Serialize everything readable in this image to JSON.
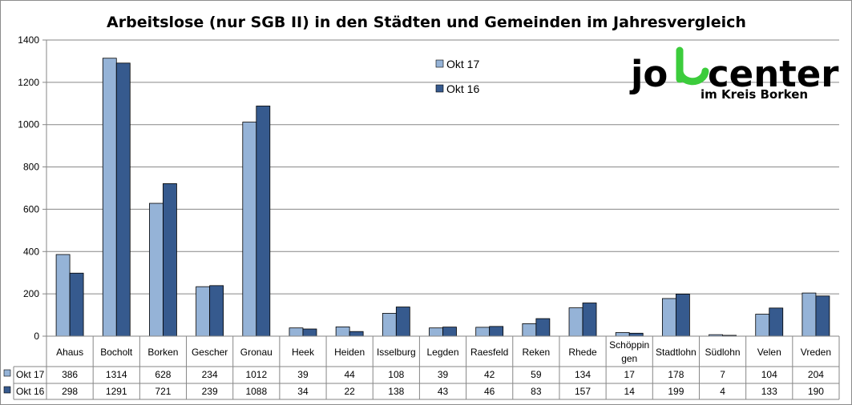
{
  "chart_data": {
    "type": "bar",
    "title": "Arbeitslose (nur SGB II) in den Städten und Gemeinden im Jahresvergleich",
    "categories": [
      "Ahaus",
      "Bocholt",
      "Borken",
      "Gescher",
      "Gronau",
      "Heek",
      "Heiden",
      "Isselburg",
      "Legden",
      "Raesfeld",
      "Reken",
      "Rhede",
      "Schöppingen",
      "Stadtlohn",
      "Südlohn",
      "Velen",
      "Vreden"
    ],
    "category_lines": [
      [
        "Ahaus"
      ],
      [
        "Bocholt"
      ],
      [
        "Borken"
      ],
      [
        "Gescher"
      ],
      [
        "Gronau"
      ],
      [
        "Heek"
      ],
      [
        "Heiden"
      ],
      [
        "Isselburg"
      ],
      [
        "Legden"
      ],
      [
        "Raesfeld"
      ],
      [
        "Reken"
      ],
      [
        "Rhede"
      ],
      [
        "Schöppin",
        "gen"
      ],
      [
        "Stadtlohn"
      ],
      [
        "Südlohn"
      ],
      [
        "Velen"
      ],
      [
        "Vreden"
      ]
    ],
    "series": [
      {
        "name": "Okt 17",
        "color": "#95b3d7",
        "values": [
          386,
          1314,
          628,
          234,
          1012,
          39,
          44,
          108,
          39,
          42,
          59,
          134,
          17,
          178,
          7,
          104,
          204
        ]
      },
      {
        "name": "Okt 16",
        "color": "#365a8e",
        "values": [
          298,
          1291,
          721,
          239,
          1088,
          34,
          22,
          138,
          43,
          46,
          83,
          157,
          14,
          199,
          4,
          133,
          190
        ]
      }
    ],
    "ylim": [
      0,
      1400
    ],
    "yticks": [
      0,
      200,
      400,
      600,
      800,
      1000,
      1200,
      1400
    ],
    "grid": true,
    "legend_position": "top-center",
    "data_table": true
  },
  "logo": {
    "line1_left": "jo",
    "line1_right": "center",
    "line2": "im Kreis Borken",
    "accent_color": "#3ccc3c"
  }
}
